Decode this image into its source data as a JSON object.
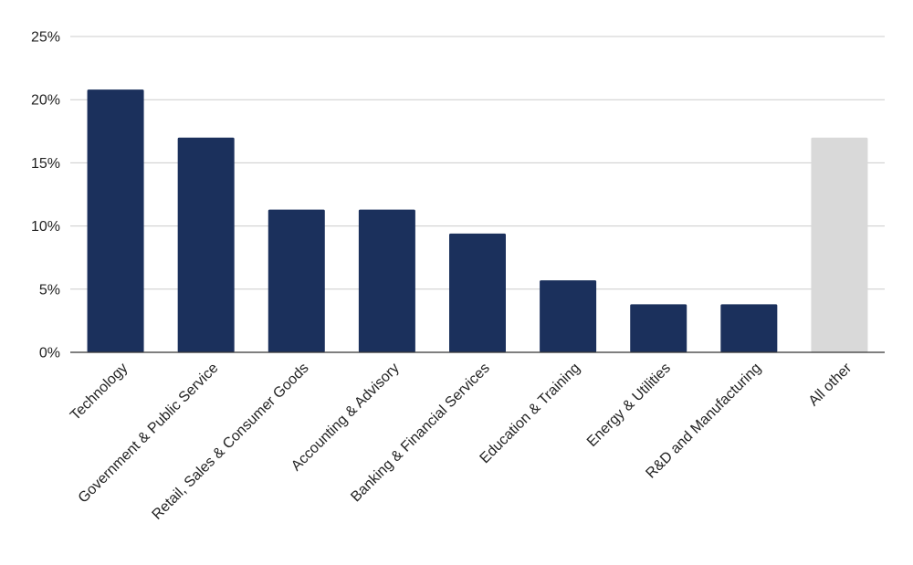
{
  "chart_data": {
    "type": "bar",
    "title": "",
    "xlabel": "",
    "ylabel": "",
    "categories": [
      "Technology",
      "Government & Public Service",
      "Retail, Sales & Consumer Goods",
      "Accounting & Advisory",
      "Banking & Financial Services",
      "Education & Training",
      "Energy & Utilities",
      "R&D and Manufacturing",
      "All other"
    ],
    "values": [
      20.8,
      17.0,
      11.3,
      11.3,
      9.4,
      5.7,
      3.8,
      3.8,
      17.0
    ],
    "ylim": [
      0,
      25
    ],
    "yticks": [
      0,
      5,
      10,
      15,
      20,
      25
    ],
    "ytick_labels": [
      "0%",
      "5%",
      "10%",
      "15%",
      "20%",
      "25%"
    ],
    "grid": true,
    "legend": "none",
    "colors": {
      "bar": "#1b305c",
      "highlight_other": "#d9d9d9",
      "grid": "#cccccc",
      "axis": "#333333"
    },
    "bar_colors": [
      "#1b305c",
      "#1b305c",
      "#1b305c",
      "#1b305c",
      "#1b305c",
      "#1b305c",
      "#1b305c",
      "#1b305c",
      "#d9d9d9"
    ]
  }
}
